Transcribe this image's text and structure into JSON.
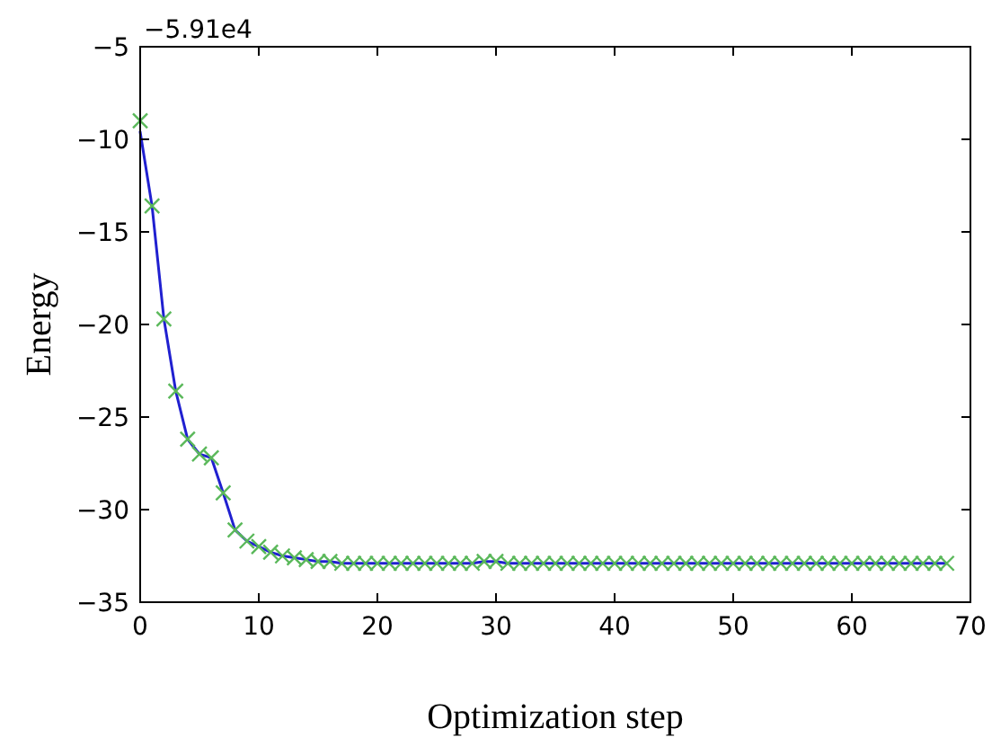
{
  "chart_data": {
    "type": "line",
    "xlabel": "Optimization step",
    "ylabel": "Energy",
    "annotations": [
      "−5.91e4"
    ],
    "x": [
      0,
      1,
      2,
      3,
      4,
      5,
      6,
      7,
      8,
      9,
      10,
      11,
      12,
      13,
      14,
      15,
      16,
      17,
      18,
      19,
      20,
      21,
      22,
      23,
      24,
      25,
      26,
      27,
      28,
      29,
      30,
      31,
      32,
      33,
      34,
      35,
      36,
      37,
      38,
      39,
      40,
      41,
      42,
      43,
      44,
      45,
      46,
      47,
      48,
      49,
      50,
      51,
      52,
      53,
      54,
      55,
      56,
      57,
      58,
      59,
      60,
      61,
      62,
      63,
      64,
      65,
      66,
      67,
      68
    ],
    "series": [
      {
        "color": "#2020d0",
        "marker": "none",
        "values": [
          -9.6,
          -13.6,
          -19.7,
          -23.6,
          -26.2,
          -27.0,
          -27.2,
          -29.1,
          -31.1,
          -31.7,
          -32.0,
          -32.3,
          -32.5,
          -32.6,
          -32.7,
          -32.8,
          -32.8,
          -32.9,
          -32.9,
          -32.9,
          -32.9,
          -32.9,
          -32.9,
          -32.9,
          -32.9,
          -32.9,
          -32.9,
          -32.9,
          -32.9,
          -32.8,
          -32.8,
          -32.9,
          -32.9,
          -32.9,
          -32.9,
          -32.9,
          -32.9,
          -32.9,
          -32.9,
          -32.9,
          -32.9,
          -32.9,
          -32.9,
          -32.9,
          -32.9,
          -32.9,
          -32.9,
          -32.9,
          -32.9,
          -32.9,
          -32.9,
          -32.9,
          -32.9,
          -32.9,
          -32.9,
          -32.9,
          -32.9,
          -32.9,
          -32.9,
          -32.9,
          -32.9,
          -32.9,
          -32.9,
          -32.9,
          -32.9,
          -32.9,
          -32.9,
          -32.9,
          -32.9
        ]
      },
      {
        "type": "scatter",
        "color": "#5ab85a",
        "marker": "cross",
        "values": [
          -9.0,
          -13.6,
          -19.7,
          -23.6,
          -26.2,
          -27.0,
          -27.2,
          -29.1,
          -31.1,
          -31.7,
          -32.0,
          -32.3,
          -32.5,
          -32.6,
          -32.7,
          -32.8,
          -32.8,
          -32.9,
          -32.9,
          -32.9,
          -32.9,
          -32.9,
          -32.9,
          -32.9,
          -32.9,
          -32.9,
          -32.9,
          -32.9,
          -32.9,
          -32.8,
          -32.8,
          -32.9,
          -32.9,
          -32.9,
          -32.9,
          -32.9,
          -32.9,
          -32.9,
          -32.9,
          -32.9,
          -32.9,
          -32.9,
          -32.9,
          -32.9,
          -32.9,
          -32.9,
          -32.9,
          -32.9,
          -32.9,
          -32.9,
          -32.9,
          -32.9,
          -32.9,
          -32.9,
          -32.9,
          -32.9,
          -32.9,
          -32.9,
          -32.9,
          -32.9,
          -32.9,
          -32.9,
          -32.9,
          -32.9,
          -32.9,
          -32.9,
          -32.9,
          -32.9,
          -32.9
        ]
      }
    ],
    "xlim": [
      0,
      70
    ],
    "xticks": [
      0,
      10,
      20,
      30,
      40,
      50,
      60,
      70
    ],
    "ylim": [
      -35,
      -5
    ],
    "yticks": [
      -35,
      -30,
      -25,
      -20,
      -15,
      -10,
      -5
    ],
    "grid": false
  }
}
